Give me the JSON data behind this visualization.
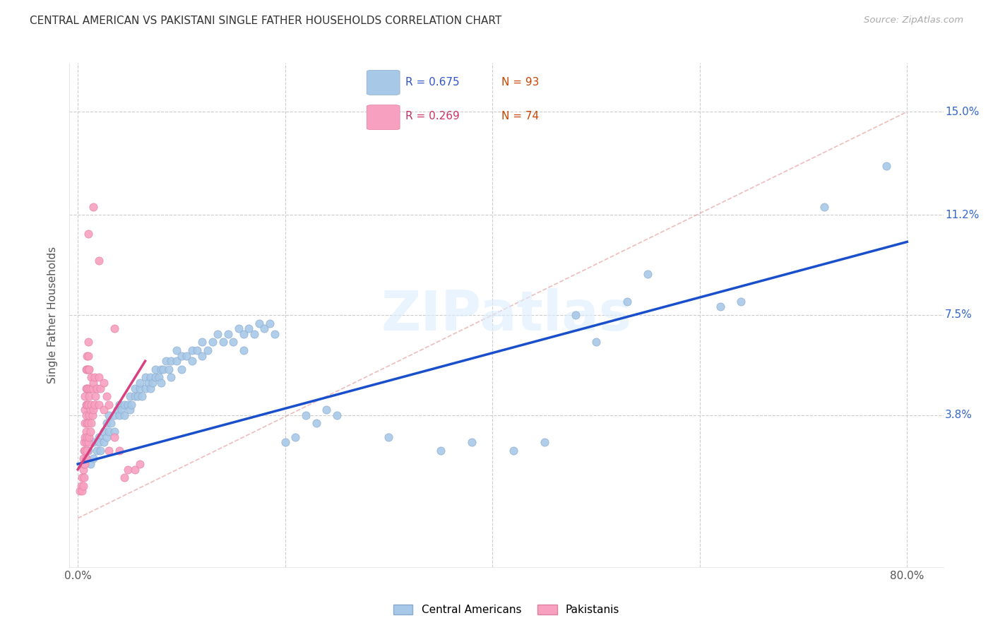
{
  "title": "CENTRAL AMERICAN VS PAKISTANI SINGLE FATHER HOUSEHOLDS CORRELATION CHART",
  "source": "Source: ZipAtlas.com",
  "ylabel": "Single Father Households",
  "ytick_labels": [
    "15.0%",
    "11.2%",
    "7.5%",
    "3.8%"
  ],
  "ytick_values": [
    0.15,
    0.112,
    0.075,
    0.038
  ],
  "xtick_values": [
    0.0,
    0.2,
    0.4,
    0.6,
    0.8
  ],
  "xlim": [
    -0.008,
    0.835
  ],
  "ylim": [
    -0.018,
    0.168
  ],
  "legend_blue_label": "Central Americans",
  "legend_pink_label": "Pakistanis",
  "watermark": "ZIPatlas",
  "blue_color": "#a8c8e8",
  "pink_color": "#f8a0c0",
  "trendline_blue": "#1a4fcc",
  "trendline_pink": "#d84080",
  "trendline_dash_color": "#e8a0a0",
  "blue_scatter": [
    [
      0.005,
      0.02
    ],
    [
      0.008,
      0.022
    ],
    [
      0.01,
      0.025
    ],
    [
      0.012,
      0.02
    ],
    [
      0.015,
      0.028
    ],
    [
      0.015,
      0.022
    ],
    [
      0.018,
      0.025
    ],
    [
      0.02,
      0.03
    ],
    [
      0.02,
      0.028
    ],
    [
      0.022,
      0.025
    ],
    [
      0.025,
      0.032
    ],
    [
      0.025,
      0.028
    ],
    [
      0.028,
      0.03
    ],
    [
      0.028,
      0.035
    ],
    [
      0.03,
      0.032
    ],
    [
      0.03,
      0.038
    ],
    [
      0.032,
      0.035
    ],
    [
      0.035,
      0.038
    ],
    [
      0.035,
      0.032
    ],
    [
      0.038,
      0.04
    ],
    [
      0.04,
      0.038
    ],
    [
      0.04,
      0.042
    ],
    [
      0.042,
      0.04
    ],
    [
      0.045,
      0.042
    ],
    [
      0.045,
      0.038
    ],
    [
      0.048,
      0.042
    ],
    [
      0.05,
      0.045
    ],
    [
      0.05,
      0.04
    ],
    [
      0.052,
      0.042
    ],
    [
      0.055,
      0.045
    ],
    [
      0.055,
      0.048
    ],
    [
      0.058,
      0.045
    ],
    [
      0.06,
      0.048
    ],
    [
      0.06,
      0.05
    ],
    [
      0.062,
      0.045
    ],
    [
      0.065,
      0.048
    ],
    [
      0.065,
      0.052
    ],
    [
      0.068,
      0.05
    ],
    [
      0.07,
      0.052
    ],
    [
      0.07,
      0.048
    ],
    [
      0.072,
      0.05
    ],
    [
      0.075,
      0.052
    ],
    [
      0.075,
      0.055
    ],
    [
      0.078,
      0.052
    ],
    [
      0.08,
      0.055
    ],
    [
      0.08,
      0.05
    ],
    [
      0.082,
      0.055
    ],
    [
      0.085,
      0.058
    ],
    [
      0.088,
      0.055
    ],
    [
      0.09,
      0.058
    ],
    [
      0.09,
      0.052
    ],
    [
      0.095,
      0.058
    ],
    [
      0.095,
      0.062
    ],
    [
      0.1,
      0.06
    ],
    [
      0.1,
      0.055
    ],
    [
      0.105,
      0.06
    ],
    [
      0.11,
      0.062
    ],
    [
      0.11,
      0.058
    ],
    [
      0.115,
      0.062
    ],
    [
      0.12,
      0.065
    ],
    [
      0.12,
      0.06
    ],
    [
      0.125,
      0.062
    ],
    [
      0.13,
      0.065
    ],
    [
      0.135,
      0.068
    ],
    [
      0.14,
      0.065
    ],
    [
      0.145,
      0.068
    ],
    [
      0.15,
      0.065
    ],
    [
      0.155,
      0.07
    ],
    [
      0.16,
      0.068
    ],
    [
      0.16,
      0.062
    ],
    [
      0.165,
      0.07
    ],
    [
      0.17,
      0.068
    ],
    [
      0.175,
      0.072
    ],
    [
      0.18,
      0.07
    ],
    [
      0.185,
      0.072
    ],
    [
      0.19,
      0.068
    ],
    [
      0.2,
      0.028
    ],
    [
      0.21,
      0.03
    ],
    [
      0.22,
      0.038
    ],
    [
      0.23,
      0.035
    ],
    [
      0.24,
      0.04
    ],
    [
      0.25,
      0.038
    ],
    [
      0.3,
      0.03
    ],
    [
      0.35,
      0.025
    ],
    [
      0.38,
      0.028
    ],
    [
      0.42,
      0.025
    ],
    [
      0.45,
      0.028
    ],
    [
      0.48,
      0.075
    ],
    [
      0.5,
      0.065
    ],
    [
      0.53,
      0.08
    ],
    [
      0.55,
      0.09
    ],
    [
      0.62,
      0.078
    ],
    [
      0.64,
      0.08
    ],
    [
      0.72,
      0.115
    ],
    [
      0.78,
      0.13
    ]
  ],
  "pink_scatter": [
    [
      0.002,
      0.01
    ],
    [
      0.003,
      0.012
    ],
    [
      0.004,
      0.01
    ],
    [
      0.004,
      0.015
    ],
    [
      0.005,
      0.012
    ],
    [
      0.005,
      0.018
    ],
    [
      0.005,
      0.022
    ],
    [
      0.006,
      0.015
    ],
    [
      0.006,
      0.02
    ],
    [
      0.006,
      0.025
    ],
    [
      0.006,
      0.028
    ],
    [
      0.007,
      0.02
    ],
    [
      0.007,
      0.025
    ],
    [
      0.007,
      0.03
    ],
    [
      0.007,
      0.035
    ],
    [
      0.007,
      0.04
    ],
    [
      0.007,
      0.045
    ],
    [
      0.008,
      0.022
    ],
    [
      0.008,
      0.028
    ],
    [
      0.008,
      0.032
    ],
    [
      0.008,
      0.038
    ],
    [
      0.008,
      0.042
    ],
    [
      0.008,
      0.048
    ],
    [
      0.008,
      0.055
    ],
    [
      0.009,
      0.025
    ],
    [
      0.009,
      0.03
    ],
    [
      0.009,
      0.035
    ],
    [
      0.009,
      0.042
    ],
    [
      0.009,
      0.048
    ],
    [
      0.009,
      0.055
    ],
    [
      0.009,
      0.06
    ],
    [
      0.01,
      0.028
    ],
    [
      0.01,
      0.035
    ],
    [
      0.01,
      0.042
    ],
    [
      0.01,
      0.048
    ],
    [
      0.01,
      0.055
    ],
    [
      0.01,
      0.06
    ],
    [
      0.01,
      0.065
    ],
    [
      0.011,
      0.03
    ],
    [
      0.011,
      0.038
    ],
    [
      0.011,
      0.045
    ],
    [
      0.011,
      0.055
    ],
    [
      0.012,
      0.032
    ],
    [
      0.012,
      0.04
    ],
    [
      0.012,
      0.048
    ],
    [
      0.013,
      0.035
    ],
    [
      0.013,
      0.042
    ],
    [
      0.013,
      0.052
    ],
    [
      0.014,
      0.038
    ],
    [
      0.014,
      0.048
    ],
    [
      0.015,
      0.04
    ],
    [
      0.015,
      0.05
    ],
    [
      0.016,
      0.042
    ],
    [
      0.016,
      0.052
    ],
    [
      0.017,
      0.045
    ],
    [
      0.018,
      0.048
    ],
    [
      0.02,
      0.052
    ],
    [
      0.02,
      0.042
    ],
    [
      0.022,
      0.048
    ],
    [
      0.025,
      0.05
    ],
    [
      0.025,
      0.04
    ],
    [
      0.028,
      0.045
    ],
    [
      0.03,
      0.042
    ],
    [
      0.03,
      0.025
    ],
    [
      0.035,
      0.03
    ],
    [
      0.04,
      0.025
    ],
    [
      0.045,
      0.015
    ],
    [
      0.048,
      0.018
    ],
    [
      0.055,
      0.018
    ],
    [
      0.06,
      0.02
    ],
    [
      0.01,
      0.105
    ],
    [
      0.015,
      0.115
    ],
    [
      0.02,
      0.095
    ],
    [
      0.035,
      0.07
    ]
  ],
  "blue_trendline_x": [
    0.0,
    0.8
  ],
  "blue_trendline_y": [
    0.02,
    0.102
  ],
  "pink_trendline_x": [
    0.0,
    0.065
  ],
  "pink_trendline_y": [
    0.018,
    0.058
  ],
  "dash_line_x": [
    0.0,
    0.8
  ],
  "dash_line_y": [
    0.0,
    0.15
  ]
}
